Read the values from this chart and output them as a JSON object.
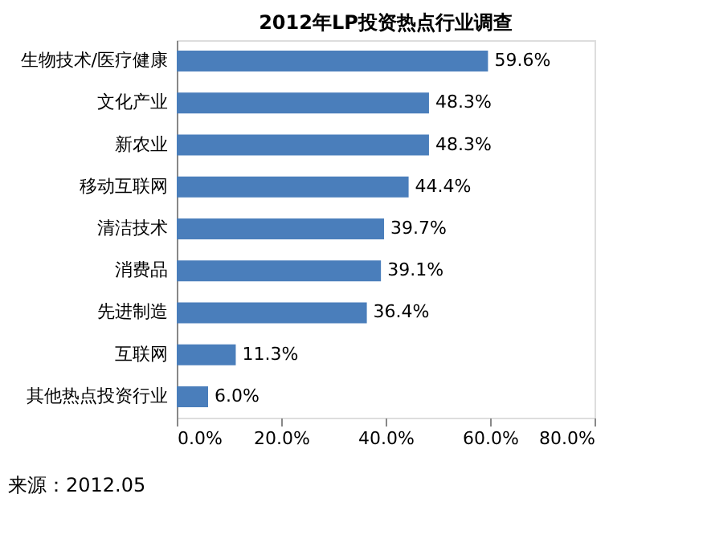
{
  "chart_data": {
    "type": "bar",
    "orientation": "horizontal",
    "title": "2012年LP投资热点行业调查",
    "categories": [
      "生物技术/医疗健康",
      "文化产业",
      "新农业",
      "移动互联网",
      "清洁技术",
      "消费品",
      "先进制造",
      "互联网",
      "其他热点投资行业"
    ],
    "values": [
      59.6,
      48.3,
      48.3,
      44.4,
      39.7,
      39.1,
      36.4,
      11.3,
      6.0
    ],
    "value_labels": [
      "59.6%",
      "48.3%",
      "48.3%",
      "44.4%",
      "39.7%",
      "39.1%",
      "36.4%",
      "11.3%",
      "6.0%"
    ],
    "color": "#4a7ebb",
    "xlim": [
      0,
      80
    ],
    "xticks": [
      {
        "value": 0,
        "label": "0.0%"
      },
      {
        "value": 20,
        "label": "20.0%"
      },
      {
        "value": 40,
        "label": "40.0%"
      },
      {
        "value": 60,
        "label": "60.0%"
      },
      {
        "value": 80,
        "label": "80.0%"
      }
    ],
    "annotations": [
      "来源：2012.05"
    ]
  }
}
